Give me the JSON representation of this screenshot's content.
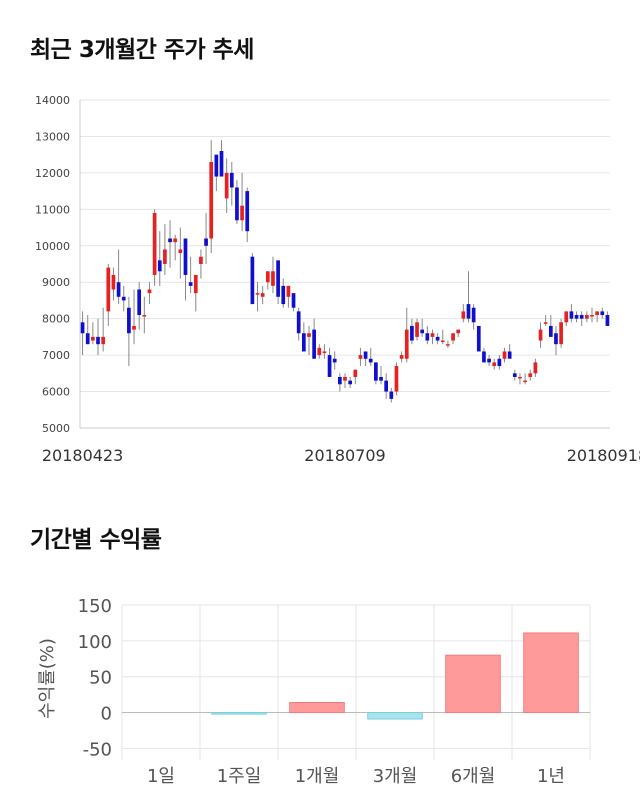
{
  "sections": {
    "price_title": "최근 3개월간 주가 추세",
    "returns_title": "기간별 수익률"
  },
  "chart_data": [
    {
      "type": "candlestick",
      "title": "최근 3개월간 주가 추세",
      "ylim": [
        5000,
        14000
      ],
      "y_ticks": [
        "14000",
        "13000",
        "12000",
        "11000",
        "10000",
        "9000",
        "8000",
        "7000",
        "6000",
        "5000"
      ],
      "x_tick_labels": [
        {
          "index": 0,
          "label": "20180423"
        },
        {
          "index": 51,
          "label": "20180709"
        },
        {
          "index": 102,
          "label": "20180918"
        }
      ],
      "colors": {
        "up": "#e52222",
        "down": "#1010cc",
        "wick": "#888888",
        "grid": "#e6e6e6"
      },
      "candles": [
        [
          7900,
          8200,
          7000,
          7600
        ],
        [
          7600,
          8100,
          7300,
          7300
        ],
        [
          7400,
          7900,
          7300,
          7500
        ],
        [
          7500,
          8000,
          7000,
          7300
        ],
        [
          7300,
          8300,
          7100,
          7500
        ],
        [
          8200,
          9500,
          7800,
          9400
        ],
        [
          8800,
          9400,
          8500,
          9200
        ],
        [
          9000,
          9900,
          8400,
          8600
        ],
        [
          8600,
          8900,
          8200,
          8500
        ],
        [
          8300,
          8600,
          6700,
          7600
        ],
        [
          7700,
          8800,
          7300,
          7800
        ],
        [
          8800,
          9000,
          7700,
          8100
        ],
        [
          8100,
          8600,
          7600,
          8100
        ],
        [
          8700,
          9000,
          8400,
          8800
        ],
        [
          9200,
          11000,
          8900,
          10900
        ],
        [
          9600,
          10400,
          8900,
          9300
        ],
        [
          9500,
          10600,
          9200,
          9900
        ],
        [
          10200,
          10700,
          9400,
          10100
        ],
        [
          10100,
          10300,
          9600,
          10200
        ],
        [
          9800,
          10500,
          9100,
          9900
        ],
        [
          10200,
          10200,
          8500,
          9200
        ],
        [
          9000,
          9700,
          8700,
          8900
        ],
        [
          8700,
          9200,
          8200,
          9200
        ],
        [
          9500,
          9900,
          9100,
          9700
        ],
        [
          10200,
          10900,
          9500,
          10000
        ],
        [
          10200,
          12900,
          9800,
          12300
        ],
        [
          12500,
          12500,
          11500,
          11900
        ],
        [
          12600,
          12900,
          11900,
          11900
        ],
        [
          11300,
          12400,
          10900,
          12000
        ],
        [
          12000,
          12300,
          11100,
          11600
        ],
        [
          11600,
          11800,
          10600,
          10700
        ],
        [
          10700,
          12000,
          10400,
          11100
        ],
        [
          11500,
          11600,
          10100,
          10400
        ],
        [
          9700,
          9800,
          8400,
          8400
        ],
        [
          8700,
          9000,
          8200,
          8700
        ],
        [
          8600,
          8900,
          8400,
          8700
        ],
        [
          9000,
          9300,
          8800,
          9300
        ],
        [
          8900,
          9700,
          8700,
          9300
        ],
        [
          9600,
          9600,
          8400,
          8600
        ],
        [
          8900,
          9100,
          8300,
          8400
        ],
        [
          8600,
          8900,
          8300,
          8900
        ],
        [
          8700,
          8700,
          8200,
          8300
        ],
        [
          8200,
          8300,
          7400,
          7600
        ],
        [
          7600,
          7900,
          7100,
          7100
        ],
        [
          7500,
          7800,
          7000,
          7600
        ],
        [
          7700,
          8000,
          6900,
          6900
        ],
        [
          7000,
          7300,
          6900,
          7200
        ],
        [
          7100,
          7300,
          6900,
          7100
        ],
        [
          7000,
          7200,
          6400,
          6400
        ],
        [
          6900,
          7100,
          6600,
          6800
        ],
        [
          6400,
          6500,
          6000,
          6200
        ],
        [
          6300,
          6500,
          6100,
          6400
        ],
        [
          6300,
          6400,
          6100,
          6200
        ],
        [
          6400,
          6600,
          6200,
          6600
        ],
        [
          6900,
          7200,
          6700,
          7000
        ],
        [
          7100,
          7100,
          6700,
          6900
        ],
        [
          6900,
          7200,
          6700,
          6800
        ],
        [
          6800,
          6800,
          6200,
          6300
        ],
        [
          6400,
          6700,
          6200,
          6300
        ],
        [
          6300,
          6500,
          5800,
          6000
        ],
        [
          6000,
          6100,
          5700,
          5800
        ],
        [
          6000,
          6800,
          5900,
          6700
        ],
        [
          6900,
          7100,
          6800,
          7000
        ],
        [
          6900,
          8300,
          6800,
          7700
        ],
        [
          7800,
          8000,
          7300,
          7400
        ],
        [
          7500,
          8000,
          7400,
          7900
        ],
        [
          7700,
          8000,
          7500,
          7600
        ],
        [
          7600,
          7800,
          7300,
          7400
        ],
        [
          7500,
          7700,
          7300,
          7600
        ],
        [
          7500,
          7600,
          7300,
          7400
        ],
        [
          7400,
          7700,
          7300,
          7400
        ],
        [
          7300,
          7400,
          7200,
          7300
        ],
        [
          7400,
          7600,
          7300,
          7600
        ],
        [
          7600,
          7700,
          7500,
          7700
        ],
        [
          8000,
          8400,
          7900,
          8200
        ],
        [
          8400,
          9300,
          7900,
          8000
        ],
        [
          8300,
          8400,
          7700,
          7900
        ],
        [
          7800,
          7800,
          7100,
          7100
        ],
        [
          7100,
          7200,
          6800,
          6800
        ],
        [
          6900,
          7000,
          6700,
          6800
        ],
        [
          6700,
          6900,
          6600,
          6800
        ],
        [
          6900,
          7000,
          6600,
          6700
        ],
        [
          6900,
          7200,
          6800,
          7100
        ],
        [
          7100,
          7300,
          6900,
          6900
        ],
        [
          6500,
          6600,
          6300,
          6400
        ],
        [
          6400,
          6500,
          6200,
          6400
        ],
        [
          6300,
          6500,
          6200,
          6300
        ],
        [
          6400,
          6600,
          6300,
          6500
        ],
        [
          6500,
          6900,
          6400,
          6800
        ],
        [
          7400,
          7900,
          7200,
          7700
        ],
        [
          7900,
          8100,
          7800,
          7900
        ],
        [
          7800,
          8100,
          7500,
          7500
        ],
        [
          7600,
          7800,
          7000,
          7300
        ],
        [
          7300,
          8000,
          7200,
          7900
        ],
        [
          7900,
          8200,
          7800,
          8200
        ],
        [
          8200,
          8400,
          7900,
          8000
        ],
        [
          8100,
          8200,
          7900,
          8000
        ],
        [
          8100,
          8200,
          7800,
          8000
        ],
        [
          8000,
          8200,
          7900,
          8100
        ],
        [
          8100,
          8300,
          7900,
          8100
        ],
        [
          8100,
          8200,
          7900,
          8200
        ],
        [
          8200,
          8300,
          8000,
          8100
        ],
        [
          8100,
          8200,
          7800,
          7800
        ]
      ]
    },
    {
      "type": "bar",
      "title": "기간별 수익률",
      "ylabel": "수익률(%)",
      "ylim": [
        -55,
        150
      ],
      "y_ticks": [
        "150",
        "100",
        "50",
        "0",
        "-50"
      ],
      "categories": [
        "1일",
        "1주일",
        "1개월",
        "3개월",
        "6개월",
        "1년"
      ],
      "values": [
        0,
        -2,
        14,
        -9,
        80,
        111
      ],
      "colors": {
        "positive": "#ff9a9a",
        "negative": "#a8e4ef",
        "positive_edge": "#f27c7c",
        "negative_edge": "#78cfe0"
      }
    }
  ]
}
